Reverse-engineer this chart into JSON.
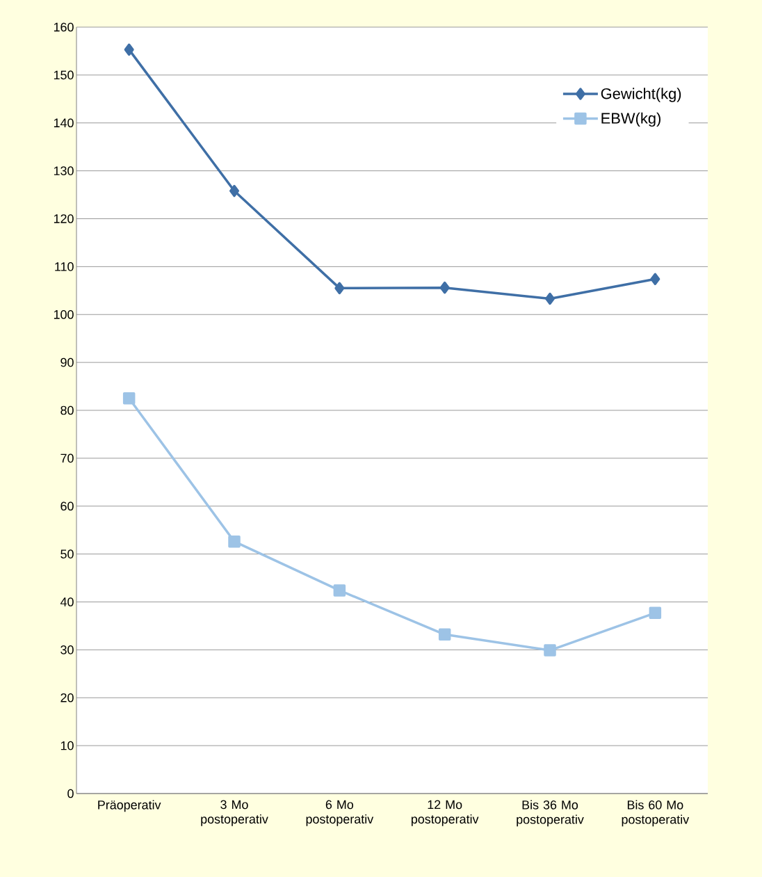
{
  "chart_data": {
    "type": "line",
    "categories": [
      "Präoperativ",
      "3 Mo postoperativ",
      "6 Mo postoperativ",
      "12 Mo postoperativ",
      "Bis 36 Mo postoperativ",
      "Bis 60 Mo postoperativ"
    ],
    "series": [
      {
        "name": "Gewicht(kg)",
        "color": "#3f6fa6",
        "marker": "diamond",
        "values": [
          155.3,
          125.8,
          105.5,
          105.6,
          103.3,
          107.4
        ]
      },
      {
        "name": "EBW(kg)",
        "color": "#9dc3e6",
        "marker": "square",
        "values": [
          82.5,
          52.6,
          42.4,
          33.2,
          29.9,
          37.7
        ]
      }
    ],
    "ylim": [
      0,
      160
    ],
    "yticks": [
      0,
      10,
      20,
      30,
      40,
      50,
      60,
      70,
      80,
      90,
      100,
      110,
      120,
      130,
      140,
      150,
      160
    ],
    "grid": "y",
    "legend": "top right"
  }
}
